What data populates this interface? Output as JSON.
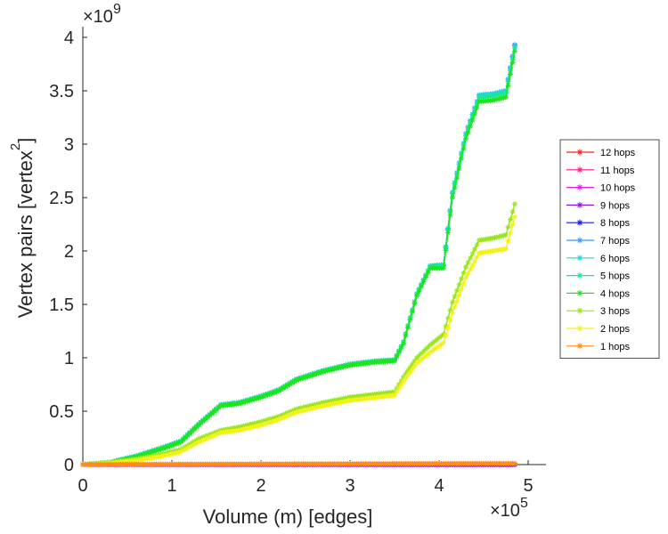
{
  "chart_data": {
    "type": "line",
    "title": "",
    "xlabel": "Volume (m) [edges]",
    "ylabel": "Vertex pairs [vertex",
    "ylabel_superscript": "2",
    "ylabel_close": "]",
    "x_multiplier_base": "×10",
    "x_multiplier_exp": "5",
    "y_multiplier_base": "×10",
    "y_multiplier_exp": "9",
    "xlim": [
      0,
      5.2
    ],
    "ylim": [
      0,
      4.1
    ],
    "xticks": [
      0,
      1,
      2,
      3,
      4,
      5
    ],
    "xtick_labels": [
      "0",
      "1",
      "2",
      "3",
      "4",
      "5"
    ],
    "yticks": [
      0,
      0.5,
      1,
      1.5,
      2,
      2.5,
      3,
      3.5,
      4
    ],
    "ytick_labels": [
      "0",
      "0.5",
      "1",
      "1.5",
      "2",
      "2.5",
      "3",
      "3.5",
      "4"
    ],
    "grid": false,
    "legend_position": "right",
    "marker": "asterisk",
    "series": [
      {
        "name": "12 hops",
        "color": "#ff1a1a",
        "x": [
          0,
          0.5,
          1,
          1.5,
          2,
          2.5,
          3,
          3.5,
          4,
          4.5,
          4.85
        ],
        "y": [
          0,
          0,
          0,
          0,
          0,
          0,
          0,
          0,
          0,
          0,
          0
        ]
      },
      {
        "name": "11 hops",
        "color": "#ff1a8c",
        "x": [
          0,
          0.5,
          1,
          1.5,
          2,
          2.5,
          3,
          3.5,
          4,
          4.5,
          4.85
        ],
        "y": [
          0,
          0,
          0,
          0,
          0,
          0,
          0,
          0,
          0,
          0,
          0
        ]
      },
      {
        "name": "10 hops",
        "color": "#e61ae6",
        "x": [
          0,
          0.5,
          1,
          1.5,
          2,
          2.5,
          3,
          3.5,
          4,
          4.5,
          4.85
        ],
        "y": [
          0,
          0,
          0,
          0,
          0,
          0,
          0,
          0,
          0,
          0,
          0
        ]
      },
      {
        "name": "9 hops",
        "color": "#8c1ae6",
        "x": [
          0,
          0.5,
          1,
          1.5,
          2,
          2.5,
          3,
          3.5,
          4,
          4.5,
          4.85
        ],
        "y": [
          0,
          0,
          0,
          0,
          0,
          0,
          0,
          0,
          0,
          0,
          0
        ]
      },
      {
        "name": "8 hops",
        "color": "#1a1ae6",
        "x": [
          0,
          0.3,
          0.6,
          0.9,
          1.1,
          1.3,
          1.55,
          1.75,
          2.0,
          2.2,
          2.4,
          2.7,
          3.0,
          3.3,
          3.5,
          3.6,
          3.75,
          3.9,
          4.05,
          4.15,
          4.3,
          4.45,
          4.6,
          4.75,
          4.85
        ],
        "y": [
          0,
          0.02,
          0.08,
          0.16,
          0.22,
          0.38,
          0.56,
          0.58,
          0.64,
          0.7,
          0.8,
          0.88,
          0.94,
          0.97,
          0.98,
          1.15,
          1.6,
          1.86,
          1.87,
          2.55,
          3.1,
          3.46,
          3.47,
          3.5,
          3.93
        ]
      },
      {
        "name": "7 hops",
        "color": "#3399ff",
        "x": [
          0,
          0.3,
          0.6,
          0.9,
          1.1,
          1.3,
          1.55,
          1.75,
          2.0,
          2.2,
          2.4,
          2.7,
          3.0,
          3.3,
          3.5,
          3.6,
          3.75,
          3.9,
          4.05,
          4.15,
          4.3,
          4.45,
          4.6,
          4.75,
          4.85
        ],
        "y": [
          0,
          0.02,
          0.08,
          0.16,
          0.22,
          0.38,
          0.56,
          0.58,
          0.64,
          0.7,
          0.8,
          0.88,
          0.94,
          0.97,
          0.98,
          1.15,
          1.6,
          1.86,
          1.87,
          2.55,
          3.1,
          3.46,
          3.47,
          3.5,
          3.93
        ]
      },
      {
        "name": "6 hops",
        "color": "#1ad9e6",
        "x": [
          0,
          0.3,
          0.6,
          0.9,
          1.1,
          1.3,
          1.55,
          1.75,
          2.0,
          2.2,
          2.4,
          2.7,
          3.0,
          3.3,
          3.5,
          3.6,
          3.75,
          3.9,
          4.05,
          4.15,
          4.3,
          4.45,
          4.6,
          4.75,
          4.85
        ],
        "y": [
          0,
          0.02,
          0.08,
          0.16,
          0.22,
          0.38,
          0.56,
          0.58,
          0.64,
          0.7,
          0.8,
          0.88,
          0.94,
          0.97,
          0.98,
          1.15,
          1.6,
          1.86,
          1.87,
          2.55,
          3.1,
          3.46,
          3.47,
          3.5,
          3.92
        ]
      },
      {
        "name": "5 hops",
        "color": "#1ae699",
        "x": [
          0,
          0.3,
          0.6,
          0.9,
          1.1,
          1.3,
          1.55,
          1.75,
          2.0,
          2.2,
          2.4,
          2.7,
          3.0,
          3.3,
          3.5,
          3.6,
          3.75,
          3.9,
          4.05,
          4.15,
          4.3,
          4.45,
          4.6,
          4.75,
          4.85
        ],
        "y": [
          0,
          0.02,
          0.08,
          0.16,
          0.22,
          0.38,
          0.56,
          0.58,
          0.64,
          0.7,
          0.8,
          0.88,
          0.94,
          0.97,
          0.98,
          1.15,
          1.6,
          1.86,
          1.86,
          2.54,
          3.08,
          3.44,
          3.45,
          3.48,
          3.9
        ]
      },
      {
        "name": "4 hops",
        "color": "#1ae61a",
        "x": [
          0,
          0.3,
          0.6,
          0.9,
          1.1,
          1.3,
          1.55,
          1.75,
          2.0,
          2.2,
          2.4,
          2.7,
          3.0,
          3.3,
          3.5,
          3.6,
          3.75,
          3.9,
          4.05,
          4.15,
          4.3,
          4.45,
          4.6,
          4.75,
          4.85
        ],
        "y": [
          0,
          0.02,
          0.07,
          0.15,
          0.21,
          0.37,
          0.55,
          0.57,
          0.63,
          0.69,
          0.79,
          0.87,
          0.93,
          0.96,
          0.97,
          1.13,
          1.58,
          1.84,
          1.84,
          2.5,
          3.05,
          3.4,
          3.41,
          3.44,
          3.87
        ]
      },
      {
        "name": "3 hops",
        "color": "#99e61a",
        "x": [
          0,
          0.3,
          0.6,
          0.9,
          1.1,
          1.3,
          1.55,
          1.75,
          2.0,
          2.2,
          2.4,
          2.7,
          3.0,
          3.3,
          3.5,
          3.6,
          3.75,
          3.9,
          4.05,
          4.15,
          4.3,
          4.45,
          4.6,
          4.75,
          4.85
        ],
        "y": [
          0,
          0.02,
          0.05,
          0.1,
          0.14,
          0.24,
          0.32,
          0.35,
          0.4,
          0.45,
          0.52,
          0.58,
          0.63,
          0.66,
          0.68,
          0.82,
          1.0,
          1.12,
          1.22,
          1.52,
          1.85,
          2.1,
          2.12,
          2.15,
          2.44
        ]
      },
      {
        "name": "2 hops",
        "color": "#f2f21a",
        "x": [
          0,
          0.3,
          0.6,
          0.9,
          1.1,
          1.3,
          1.55,
          1.75,
          2.0,
          2.2,
          2.4,
          2.7,
          3.0,
          3.3,
          3.5,
          3.6,
          3.75,
          3.9,
          4.05,
          4.15,
          4.3,
          4.45,
          4.6,
          4.75,
          4.85
        ],
        "y": [
          0,
          0.01,
          0.04,
          0.08,
          0.12,
          0.21,
          0.3,
          0.32,
          0.37,
          0.42,
          0.49,
          0.55,
          0.6,
          0.63,
          0.65,
          0.78,
          0.95,
          1.05,
          1.14,
          1.42,
          1.75,
          1.98,
          2.0,
          2.02,
          2.32
        ]
      },
      {
        "name": "1 hops",
        "color": "#ff8c1a",
        "x": [
          0,
          0.5,
          1,
          1.5,
          2,
          2.5,
          3,
          3.5,
          4,
          4.5,
          4.85
        ],
        "y": [
          0.001,
          0.002,
          0.003,
          0.004,
          0.005,
          0.006,
          0.007,
          0.008,
          0.009,
          0.01,
          0.01
        ]
      }
    ]
  }
}
